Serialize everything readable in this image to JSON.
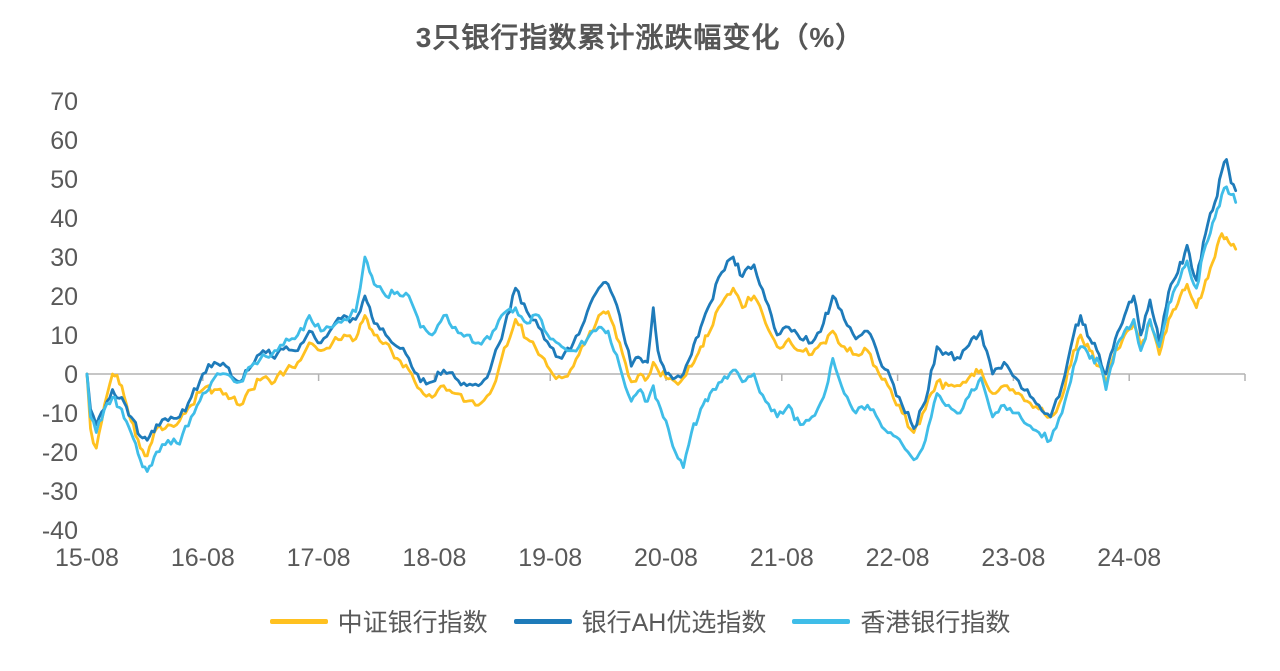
{
  "chart_data": {
    "type": "line",
    "title": "3只银行指数累计涨跌幅变化（%）",
    "xlabel": "",
    "ylabel": "",
    "x_ticks": [
      "15-08",
      "16-08",
      "17-08",
      "18-08",
      "19-08",
      "20-08",
      "21-08",
      "22-08",
      "23-08",
      "24-08"
    ],
    "y_ticks": [
      70,
      60,
      50,
      40,
      30,
      20,
      10,
      0,
      -10,
      -20,
      -30,
      -40
    ],
    "xlim": [
      0,
      10
    ],
    "ylim": [
      -40,
      70
    ],
    "grid": "zero-line-only",
    "legend_position": "bottom",
    "axis_color": "#b3b3b3",
    "text_color": "#595959",
    "jitter": 1.25,
    "x_unit": "years since 2015-08",
    "columns": [
      "t",
      "csi_bank",
      "bank_ah",
      "hk_bank"
    ],
    "series": [
      {
        "name": "中证银行指数",
        "color": "#FFC120"
      },
      {
        "name": "银行AH优选指数",
        "color": "#1E7BBA"
      },
      {
        "name": "香港银行指数",
        "color": "#3FBDE8"
      }
    ],
    "rows": [
      [
        0.0,
        0,
        0,
        0
      ],
      [
        0.03,
        -14,
        -9,
        -11
      ],
      [
        0.08,
        -19,
        -13,
        -15
      ],
      [
        0.15,
        -8,
        -9,
        -9
      ],
      [
        0.22,
        0,
        -4,
        -6
      ],
      [
        0.3,
        -3,
        -6,
        -9
      ],
      [
        0.38,
        -12,
        -11,
        -15
      ],
      [
        0.46,
        -19,
        -16,
        -22
      ],
      [
        0.52,
        -21,
        -17,
        -25
      ],
      [
        0.6,
        -14,
        -13,
        -20
      ],
      [
        0.7,
        -13,
        -12,
        -17
      ],
      [
        0.8,
        -12,
        -11,
        -18
      ],
      [
        0.9,
        -8,
        -6,
        -11
      ],
      [
        1.0,
        -4,
        0,
        -5
      ],
      [
        1.1,
        -4,
        3,
        -1
      ],
      [
        1.2,
        -5,
        2,
        0
      ],
      [
        1.32,
        -8,
        -2,
        -2
      ],
      [
        1.42,
        -4,
        2,
        2
      ],
      [
        1.52,
        -1,
        6,
        5
      ],
      [
        1.62,
        -2,
        4,
        6
      ],
      [
        1.72,
        1,
        7,
        9
      ],
      [
        1.82,
        3,
        6,
        10
      ],
      [
        1.92,
        8,
        11,
        15
      ],
      [
        2.02,
        6,
        8,
        11
      ],
      [
        2.12,
        8,
        12,
        12
      ],
      [
        2.22,
        10,
        15,
        14
      ],
      [
        2.32,
        9,
        14,
        16
      ],
      [
        2.4,
        15,
        20,
        30
      ],
      [
        2.48,
        10,
        13,
        23
      ],
      [
        2.58,
        8,
        10,
        20
      ],
      [
        2.68,
        4,
        7,
        21
      ],
      [
        2.78,
        1,
        4,
        20
      ],
      [
        2.88,
        -4,
        -2,
        12
      ],
      [
        2.98,
        -6,
        -2,
        10
      ],
      [
        3.08,
        -3,
        1,
        15
      ],
      [
        3.18,
        -5,
        -1,
        12
      ],
      [
        3.28,
        -7,
        -3,
        10
      ],
      [
        3.38,
        -8,
        -3,
        8
      ],
      [
        3.48,
        -5,
        1,
        9
      ],
      [
        3.58,
        4,
        9,
        15
      ],
      [
        3.7,
        14,
        22,
        17
      ],
      [
        3.8,
        9,
        16,
        13
      ],
      [
        3.9,
        5,
        12,
        15
      ],
      [
        4.0,
        1,
        7,
        9
      ],
      [
        4.1,
        -1,
        4,
        7
      ],
      [
        4.2,
        2,
        8,
        6
      ],
      [
        4.32,
        9,
        16,
        9
      ],
      [
        4.42,
        15,
        22,
        12
      ],
      [
        4.5,
        16,
        23,
        11
      ],
      [
        4.6,
        8,
        15,
        2
      ],
      [
        4.7,
        -2,
        2,
        -7
      ],
      [
        4.78,
        0,
        4,
        -4
      ],
      [
        4.84,
        -1,
        3,
        -7
      ],
      [
        4.89,
        3,
        17,
        -3
      ],
      [
        4.93,
        1,
        6,
        -7
      ],
      [
        5.0,
        -1,
        0,
        -12
      ],
      [
        5.08,
        -2,
        -1,
        -20
      ],
      [
        5.15,
        -1,
        0,
        -24
      ],
      [
        5.22,
        2,
        5,
        -15
      ],
      [
        5.3,
        7,
        12,
        -9
      ],
      [
        5.38,
        11,
        18,
        -5
      ],
      [
        5.48,
        18,
        26,
        -2
      ],
      [
        5.58,
        22,
        30,
        1
      ],
      [
        5.66,
        17,
        25,
        -2
      ],
      [
        5.76,
        20,
        28,
        0
      ],
      [
        5.86,
        13,
        19,
        -7
      ],
      [
        5.96,
        7,
        10,
        -11
      ],
      [
        6.06,
        9,
        12,
        -8
      ],
      [
        6.16,
        6,
        9,
        -13
      ],
      [
        6.26,
        5,
        8,
        -11
      ],
      [
        6.36,
        8,
        13,
        -6
      ],
      [
        6.44,
        11,
        20,
        4
      ],
      [
        6.54,
        7,
        14,
        -5
      ],
      [
        6.64,
        5,
        9,
        -10
      ],
      [
        6.74,
        6,
        11,
        -8
      ],
      [
        6.84,
        0,
        4,
        -12
      ],
      [
        6.94,
        -4,
        -1,
        -15
      ],
      [
        7.04,
        -10,
        -8,
        -18
      ],
      [
        7.14,
        -15,
        -14,
        -22
      ],
      [
        7.24,
        -9,
        -7,
        -17
      ],
      [
        7.34,
        -2,
        7,
        -5
      ],
      [
        7.44,
        -3,
        5,
        -8
      ],
      [
        7.54,
        -3,
        4,
        -10
      ],
      [
        7.64,
        0,
        9,
        -4
      ],
      [
        7.72,
        1,
        11,
        -1
      ],
      [
        7.82,
        -5,
        0,
        -11
      ],
      [
        7.92,
        -3,
        3,
        -8
      ],
      [
        8.02,
        -5,
        -1,
        -10
      ],
      [
        8.12,
        -7,
        -4,
        -13
      ],
      [
        8.22,
        -9,
        -8,
        -15
      ],
      [
        8.32,
        -11,
        -11,
        -17
      ],
      [
        8.42,
        -6,
        -3,
        -10
      ],
      [
        8.52,
        6,
        10,
        2
      ],
      [
        8.58,
        10,
        15,
        7
      ],
      [
        8.66,
        6,
        9,
        4
      ],
      [
        8.74,
        2,
        5,
        3
      ],
      [
        8.8,
        -2,
        0,
        -4
      ],
      [
        8.88,
        6,
        9,
        6
      ],
      [
        8.96,
        10,
        15,
        11
      ],
      [
        9.04,
        13,
        20,
        14
      ],
      [
        9.1,
        7,
        10,
        6
      ],
      [
        9.18,
        13,
        19,
        14
      ],
      [
        9.26,
        5,
        8,
        7
      ],
      [
        9.34,
        14,
        21,
        18
      ],
      [
        9.42,
        18,
        26,
        23
      ],
      [
        9.5,
        23,
        33,
        29
      ],
      [
        9.58,
        17,
        24,
        22
      ],
      [
        9.66,
        24,
        36,
        33
      ],
      [
        9.74,
        30,
        44,
        40
      ],
      [
        9.8,
        36,
        52,
        46
      ],
      [
        9.84,
        35,
        55,
        48
      ],
      [
        9.88,
        33,
        49,
        46
      ],
      [
        9.92,
        32,
        47,
        44
      ]
    ]
  }
}
